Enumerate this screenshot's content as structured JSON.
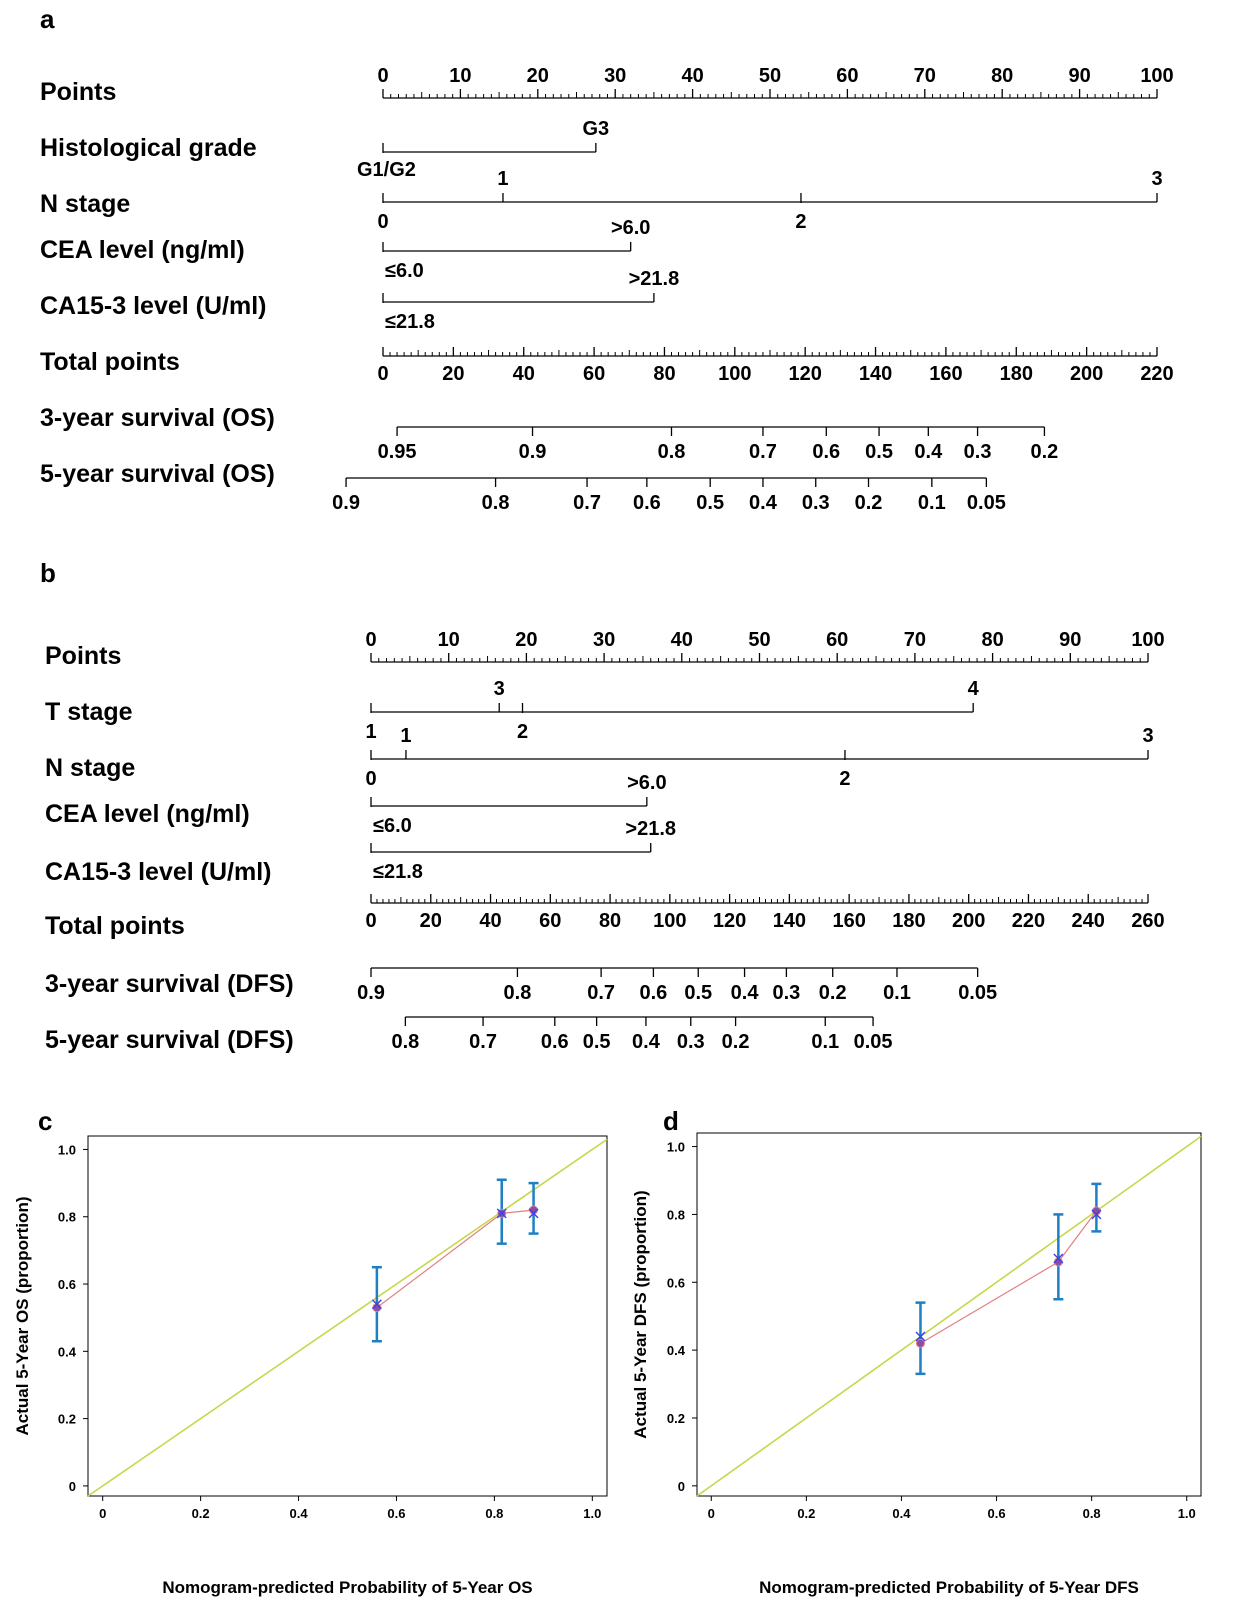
{
  "chart_data": [
    {
      "type": "nomogram",
      "panel": "a",
      "rows": [
        {
          "label": "Points",
          "kind": "scale",
          "ticks": [
            0,
            10,
            20,
            30,
            40,
            50,
            60,
            70,
            80,
            90,
            100
          ],
          "minor_per_major": 10,
          "label_side": "above"
        },
        {
          "label": "Histological grade",
          "kind": "factor",
          "levels": [
            {
              "text": "G1/G2",
              "points": 0,
              "side": "below"
            },
            {
              "text": "G3",
              "points": 27.5,
              "side": "above"
            }
          ]
        },
        {
          "label": "N stage",
          "kind": "factor",
          "levels": [
            {
              "text": "1",
              "points": 15.5,
              "side": "above"
            },
            {
              "text": "3",
              "points": 100,
              "side": "above"
            },
            {
              "text": "0",
              "points": 0,
              "side": "below"
            },
            {
              "text": "2",
              "points": 54,
              "side": "below"
            }
          ]
        },
        {
          "label": "CEA level (ng/ml)",
          "kind": "factor",
          "levels": [
            {
              "text": ">6.0",
              "points": 32,
              "side": "above"
            },
            {
              "text": "≤6.0",
              "points": 0,
              "side": "below"
            }
          ]
        },
        {
          "label": "CA15-3 level (U/ml)",
          "kind": "factor",
          "levels": [
            {
              "text": ">21.8",
              "points": 35,
              "side": "above"
            },
            {
              "text": "≤21.8",
              "points": 0,
              "side": "below"
            }
          ]
        },
        {
          "label": "Total points",
          "kind": "scale",
          "ticks": [
            0,
            20,
            40,
            60,
            80,
            100,
            120,
            140,
            160,
            180,
            200,
            220
          ],
          "minor_per_major": 10,
          "label_side": "below"
        },
        {
          "label": "3-year survival (OS)",
          "kind": "prob",
          "label_side": "below",
          "ticks": [
            {
              "text": "0.95",
              "total": 4
            },
            {
              "text": "0.9",
              "total": 42.5
            },
            {
              "text": "0.8",
              "total": 82
            },
            {
              "text": "0.7",
              "total": 108
            },
            {
              "text": "0.6",
              "total": 126
            },
            {
              "text": "0.5",
              "total": 141
            },
            {
              "text": "0.4",
              "total": 155
            },
            {
              "text": "0.3",
              "total": 169
            },
            {
              "text": "0.2",
              "total": 188
            }
          ]
        },
        {
          "label": "5-year survival (OS)",
          "kind": "prob",
          "label_side": "below",
          "ticks": [
            {
              "text": "0.9",
              "total": -10.5
            },
            {
              "text": "0.8",
              "total": 32
            },
            {
              "text": "0.7",
              "total": 58
            },
            {
              "text": "0.6",
              "total": 75
            },
            {
              "text": "0.5",
              "total": 93
            },
            {
              "text": "0.4",
              "total": 108
            },
            {
              "text": "0.3",
              "total": 123
            },
            {
              "text": "0.2",
              "total": 138
            },
            {
              "text": "0.1",
              "total": 156
            },
            {
              "text": "0.05",
              "total": 171.5
            }
          ]
        }
      ]
    },
    {
      "type": "nomogram",
      "panel": "b",
      "rows": [
        {
          "label": "Points",
          "kind": "scale",
          "ticks": [
            0,
            10,
            20,
            30,
            40,
            50,
            60,
            70,
            80,
            90,
            100
          ],
          "minor_per_major": 10,
          "label_side": "above"
        },
        {
          "label": "T stage",
          "kind": "factor",
          "levels": [
            {
              "text": "3",
              "points": 16.5,
              "side": "above"
            },
            {
              "text": "4",
              "points": 77.5,
              "side": "above"
            },
            {
              "text": "1",
              "points": 0,
              "side": "below"
            },
            {
              "text": "2",
              "points": 19.5,
              "side": "below"
            }
          ]
        },
        {
          "label": "N stage",
          "kind": "factor",
          "levels": [
            {
              "text": "1",
              "points": 4.5,
              "side": "above"
            },
            {
              "text": "3",
              "points": 100,
              "side": "above"
            },
            {
              "text": "0",
              "points": 0,
              "side": "below"
            },
            {
              "text": "2",
              "points": 61,
              "side": "below"
            }
          ]
        },
        {
          "label": "CEA level (ng/ml)",
          "kind": "factor",
          "levels": [
            {
              "text": ">6.0",
              "points": 35.5,
              "side": "above"
            },
            {
              "text": "≤6.0",
              "points": 0,
              "side": "below"
            }
          ]
        },
        {
          "label": "CA15-3 level (U/ml)",
          "kind": "factor",
          "levels": [
            {
              "text": ">21.8",
              "points": 36,
              "side": "above"
            },
            {
              "text": "≤21.8",
              "points": 0,
              "side": "below"
            }
          ]
        },
        {
          "label": "Total points",
          "kind": "scale",
          "ticks": [
            0,
            20,
            40,
            60,
            80,
            100,
            120,
            140,
            160,
            180,
            200,
            220,
            240,
            260
          ],
          "minor_per_major": 10,
          "label_side": "below"
        },
        {
          "label": "3-year survival (DFS)",
          "kind": "prob",
          "label_side": "below",
          "ticks": [
            {
              "text": "0.9",
              "total": 0
            },
            {
              "text": "0.8",
              "total": 49
            },
            {
              "text": "0.7",
              "total": 77
            },
            {
              "text": "0.6",
              "total": 94.5
            },
            {
              "text": "0.5",
              "total": 109.5
            },
            {
              "text": "0.4",
              "total": 125
            },
            {
              "text": "0.3",
              "total": 139
            },
            {
              "text": "0.2",
              "total": 154.5
            },
            {
              "text": "0.1",
              "total": 176
            },
            {
              "text": "0.05",
              "total": 203
            }
          ]
        },
        {
          "label": "5-year survival (DFS)",
          "kind": "prob",
          "label_side": "below",
          "ticks": [
            {
              "text": "0.8",
              "total": 11.5
            },
            {
              "text": "0.7",
              "total": 37.5
            },
            {
              "text": "0.6",
              "total": 61.5
            },
            {
              "text": "0.5",
              "total": 75.5
            },
            {
              "text": "0.4",
              "total": 92
            },
            {
              "text": "0.3",
              "total": 107
            },
            {
              "text": "0.2",
              "total": 122
            },
            {
              "text": "0.1",
              "total": 152
            },
            {
              "text": "0.05",
              "total": 168
            }
          ]
        }
      ]
    },
    {
      "type": "scatter",
      "panel": "c",
      "xlabel": "Nomogram-predicted Probability of 5-Year OS",
      "ylabel": "Actual 5-Year OS (proportion)",
      "xlim": [
        -0.03,
        1.03
      ],
      "ylim": [
        -0.03,
        1.04
      ],
      "xticks": [
        "0",
        "0.2",
        "0.4",
        "0.6",
        "0.8",
        "1.0"
      ],
      "yticks": [
        "0",
        "0.2",
        "0.4",
        "0.6",
        "0.8",
        "1.0"
      ],
      "ideal_line_color": "#c5d84a",
      "observed_line_color": "#e08080",
      "errorbar_color": "#1f7fc4",
      "point_color": "#8a4ab0",
      "cross_color": "#4040e0",
      "points": [
        {
          "x": 0.56,
          "y": 0.53,
          "lower": 0.43,
          "upper": 0.65,
          "corrected": 0.54
        },
        {
          "x": 0.815,
          "y": 0.81,
          "lower": 0.72,
          "upper": 0.91,
          "corrected": 0.81
        },
        {
          "x": 0.88,
          "y": 0.82,
          "lower": 0.75,
          "upper": 0.9,
          "corrected": 0.81
        }
      ]
    },
    {
      "type": "scatter",
      "panel": "d",
      "xlabel": "Nomogram-predicted Probability of 5-Year DFS",
      "ylabel": "Actual 5-Year DFS (proportion)",
      "xlim": [
        -0.03,
        1.03
      ],
      "ylim": [
        -0.03,
        1.04
      ],
      "xticks": [
        "0",
        "0.2",
        "0.4",
        "0.6",
        "0.8",
        "1.0"
      ],
      "yticks": [
        "0",
        "0.2",
        "0.4",
        "0.6",
        "0.8",
        "1.0"
      ],
      "ideal_line_color": "#c5d84a",
      "observed_line_color": "#e08080",
      "errorbar_color": "#1f7fc4",
      "point_color": "#8a4ab0",
      "cross_color": "#4040e0",
      "points": [
        {
          "x": 0.44,
          "y": 0.42,
          "lower": 0.33,
          "upper": 0.54,
          "corrected": 0.44
        },
        {
          "x": 0.73,
          "y": 0.66,
          "lower": 0.55,
          "upper": 0.8,
          "corrected": 0.67
        },
        {
          "x": 0.81,
          "y": 0.81,
          "lower": 0.75,
          "upper": 0.89,
          "corrected": 0.8
        }
      ]
    }
  ]
}
